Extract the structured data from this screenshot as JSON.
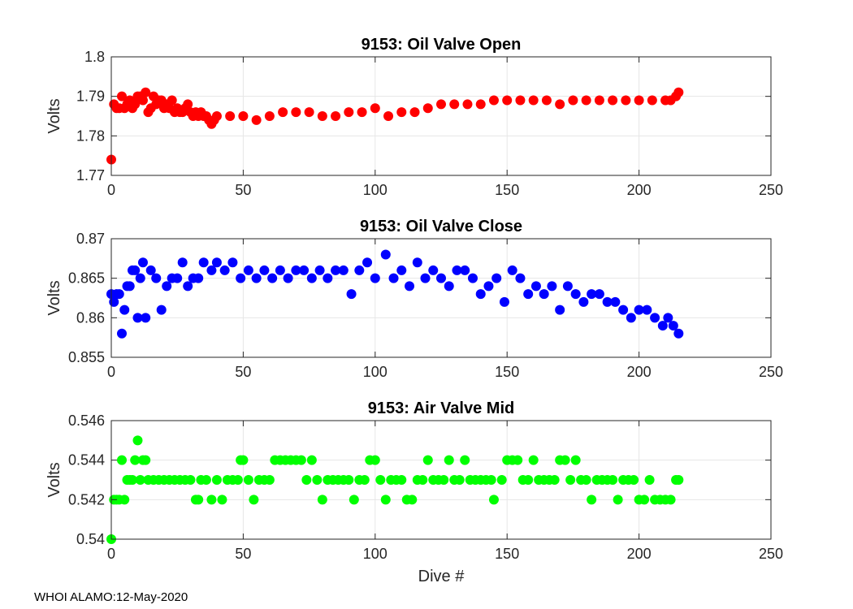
{
  "footer_text": "WHOI ALAMO:12-May-2020",
  "chart_data": [
    {
      "type": "scatter",
      "title": "9153: Oil Valve Open",
      "xlabel": "",
      "ylabel": "Volts",
      "xlim": [
        0,
        250
      ],
      "ylim": [
        1.77,
        1.8
      ],
      "xticks": [
        "0",
        "50",
        "100",
        "150",
        "200",
        "250"
      ],
      "yticks": [
        "1.77",
        "1.78",
        "1.79",
        "1.8"
      ],
      "xtick_values": [
        0,
        50,
        100,
        150,
        200,
        250
      ],
      "ytick_values": [
        1.77,
        1.78,
        1.79,
        1.8
      ],
      "grid": true,
      "color": "#ff0000",
      "series": [
        {
          "name": "Oil Valve Open",
          "x": [
            0,
            1,
            2,
            3,
            4,
            5,
            6,
            7,
            8,
            9,
            10,
            11,
            12,
            13,
            14,
            15,
            16,
            17,
            18,
            19,
            20,
            21,
            22,
            23,
            24,
            25,
            26,
            27,
            28,
            29,
            30,
            31,
            32,
            33,
            34,
            35,
            36,
            37,
            38,
            39,
            40,
            45,
            50,
            55,
            60,
            65,
            70,
            75,
            80,
            85,
            90,
            95,
            100,
            105,
            110,
            115,
            120,
            125,
            130,
            135,
            140,
            145,
            150,
            155,
            160,
            165,
            170,
            175,
            180,
            185,
            190,
            195,
            200,
            205,
            210,
            212,
            214,
            215
          ],
          "y": [
            1.774,
            1.788,
            1.787,
            1.787,
            1.79,
            1.787,
            1.788,
            1.789,
            1.787,
            1.788,
            1.79,
            1.79,
            1.789,
            1.791,
            1.786,
            1.787,
            1.79,
            1.788,
            1.789,
            1.789,
            1.787,
            1.788,
            1.787,
            1.789,
            1.786,
            1.787,
            1.786,
            1.786,
            1.787,
            1.788,
            1.786,
            1.785,
            1.786,
            1.785,
            1.786,
            1.785,
            1.785,
            1.784,
            1.783,
            1.784,
            1.785,
            1.785,
            1.785,
            1.784,
            1.785,
            1.786,
            1.786,
            1.786,
            1.785,
            1.785,
            1.786,
            1.786,
            1.787,
            1.785,
            1.786,
            1.786,
            1.787,
            1.788,
            1.788,
            1.788,
            1.788,
            1.789,
            1.789,
            1.789,
            1.789,
            1.789,
            1.788,
            1.789,
            1.789,
            1.789,
            1.789,
            1.789,
            1.789,
            1.789,
            1.789,
            1.789,
            1.79,
            1.791
          ]
        }
      ]
    },
    {
      "type": "scatter",
      "title": "9153: Oil Valve Close",
      "xlabel": "",
      "ylabel": "Volts",
      "xlim": [
        0,
        250
      ],
      "ylim": [
        0.855,
        0.87
      ],
      "xticks": [
        "0",
        "50",
        "100",
        "150",
        "200",
        "250"
      ],
      "yticks": [
        "0.855",
        "0.86",
        "0.865",
        "0.87"
      ],
      "xtick_values": [
        0,
        50,
        100,
        150,
        200,
        250
      ],
      "ytick_values": [
        0.855,
        0.86,
        0.865,
        0.87
      ],
      "grid": true,
      "color": "#0000ff",
      "series": [
        {
          "name": "Oil Valve Close",
          "x": [
            0,
            1,
            2,
            3,
            4,
            5,
            6,
            7,
            8,
            9,
            10,
            11,
            12,
            13,
            15,
            17,
            19,
            21,
            23,
            25,
            27,
            29,
            31,
            33,
            35,
            38,
            40,
            43,
            46,
            49,
            52,
            55,
            58,
            61,
            64,
            67,
            70,
            73,
            76,
            79,
            82,
            85,
            88,
            91,
            94,
            97,
            100,
            104,
            107,
            110,
            113,
            116,
            119,
            122,
            125,
            128,
            131,
            134,
            137,
            140,
            143,
            146,
            149,
            152,
            155,
            158,
            161,
            164,
            167,
            170,
            173,
            176,
            179,
            182,
            185,
            188,
            191,
            194,
            197,
            200,
            203,
            206,
            209,
            211,
            213,
            215
          ],
          "y": [
            0.863,
            0.862,
            0.863,
            0.863,
            0.858,
            0.861,
            0.864,
            0.864,
            0.866,
            0.866,
            0.86,
            0.865,
            0.867,
            0.86,
            0.866,
            0.865,
            0.861,
            0.864,
            0.865,
            0.865,
            0.867,
            0.864,
            0.865,
            0.865,
            0.867,
            0.866,
            0.867,
            0.866,
            0.867,
            0.865,
            0.866,
            0.865,
            0.866,
            0.865,
            0.866,
            0.865,
            0.866,
            0.866,
            0.865,
            0.866,
            0.865,
            0.866,
            0.866,
            0.863,
            0.866,
            0.867,
            0.865,
            0.868,
            0.865,
            0.866,
            0.864,
            0.867,
            0.865,
            0.866,
            0.865,
            0.864,
            0.866,
            0.866,
            0.865,
            0.863,
            0.864,
            0.865,
            0.862,
            0.866,
            0.865,
            0.863,
            0.864,
            0.863,
            0.864,
            0.861,
            0.864,
            0.863,
            0.862,
            0.863,
            0.863,
            0.862,
            0.862,
            0.861,
            0.86,
            0.861,
            0.861,
            0.86,
            0.859,
            0.86,
            0.859,
            0.858
          ]
        }
      ]
    },
    {
      "type": "scatter",
      "title": "9153: Air Valve Mid",
      "xlabel": "Dive #",
      "ylabel": "Volts",
      "xlim": [
        0,
        250
      ],
      "ylim": [
        0.54,
        0.546
      ],
      "xticks": [
        "0",
        "50",
        "100",
        "150",
        "200",
        "250"
      ],
      "yticks": [
        "0.54",
        "0.542",
        "0.544",
        "0.546"
      ],
      "xtick_values": [
        0,
        50,
        100,
        150,
        200,
        250
      ],
      "ytick_values": [
        0.54,
        0.542,
        0.544,
        0.546
      ],
      "grid": true,
      "color": "#00ff00",
      "series": [
        {
          "name": "Air Valve Mid",
          "x": [
            0,
            1,
            2,
            3,
            4,
            5,
            6,
            7,
            8,
            9,
            10,
            11,
            12,
            13,
            14,
            16,
            18,
            20,
            22,
            24,
            26,
            28,
            30,
            32,
            33,
            34,
            36,
            38,
            40,
            42,
            44,
            46,
            48,
            49,
            50,
            52,
            54,
            56,
            58,
            60,
            62,
            64,
            66,
            68,
            70,
            72,
            74,
            76,
            78,
            80,
            82,
            84,
            86,
            88,
            90,
            92,
            94,
            96,
            98,
            100,
            102,
            104,
            106,
            108,
            110,
            112,
            114,
            116,
            118,
            120,
            122,
            124,
            126,
            128,
            130,
            132,
            134,
            136,
            138,
            140,
            142,
            144,
            145,
            148,
            150,
            152,
            154,
            156,
            158,
            160,
            162,
            164,
            166,
            168,
            170,
            172,
            174,
            176,
            178,
            180,
            182,
            184,
            186,
            188,
            190,
            192,
            194,
            196,
            198,
            200,
            202,
            204,
            206,
            208,
            210,
            212,
            214,
            215
          ],
          "y": [
            0.54,
            0.542,
            0.542,
            0.542,
            0.544,
            0.542,
            0.543,
            0.543,
            0.543,
            0.544,
            0.545,
            0.543,
            0.544,
            0.544,
            0.543,
            0.543,
            0.543,
            0.543,
            0.543,
            0.543,
            0.543,
            0.543,
            0.543,
            0.542,
            0.542,
            0.543,
            0.543,
            0.542,
            0.543,
            0.542,
            0.543,
            0.543,
            0.543,
            0.544,
            0.544,
            0.543,
            0.542,
            0.543,
            0.543,
            0.543,
            0.544,
            0.544,
            0.544,
            0.544,
            0.544,
            0.544,
            0.543,
            0.544,
            0.543,
            0.542,
            0.543,
            0.543,
            0.543,
            0.543,
            0.543,
            0.542,
            0.543,
            0.543,
            0.544,
            0.544,
            0.543,
            0.542,
            0.543,
            0.543,
            0.543,
            0.542,
            0.542,
            0.543,
            0.543,
            0.544,
            0.543,
            0.543,
            0.543,
            0.544,
            0.543,
            0.543,
            0.544,
            0.543,
            0.543,
            0.543,
            0.543,
            0.543,
            0.542,
            0.543,
            0.544,
            0.544,
            0.544,
            0.543,
            0.543,
            0.544,
            0.543,
            0.543,
            0.543,
            0.543,
            0.544,
            0.544,
            0.543,
            0.544,
            0.543,
            0.543,
            0.542,
            0.543,
            0.543,
            0.543,
            0.543,
            0.542,
            0.543,
            0.543,
            0.543,
            0.542,
            0.542,
            0.543,
            0.542,
            0.542,
            0.542,
            0.542,
            0.543,
            0.543
          ]
        }
      ]
    }
  ]
}
